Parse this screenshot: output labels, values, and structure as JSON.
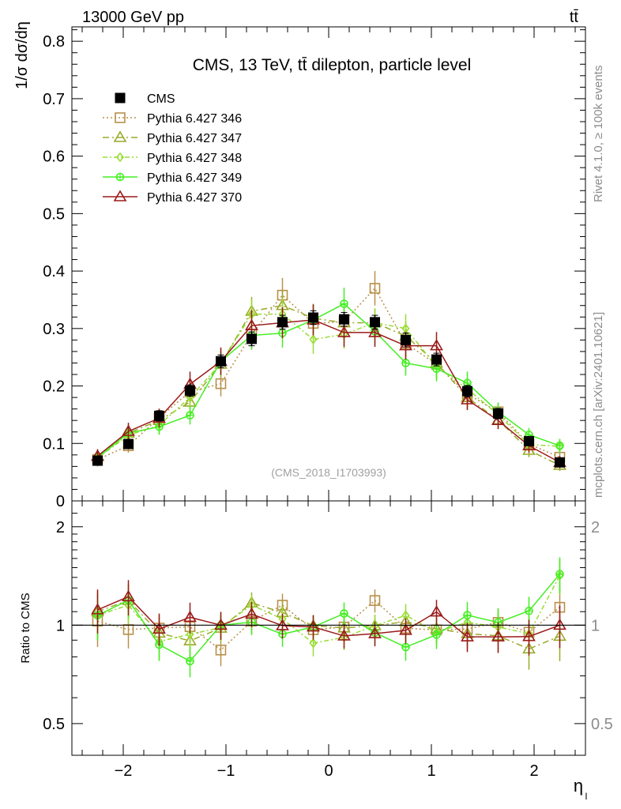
{
  "header": {
    "energy_label": "13000 GeV pp",
    "process_label": "tt̄",
    "side_label_top": "Rivet 4.1.0, ≥ 100k events",
    "side_label_bottom": "mcplots.cern.ch [arXiv:2401.10621]"
  },
  "chart_data": {
    "type": "line",
    "title": "CMS, 13 TeV, tt̄ dilepton, particle level",
    "analysis_id": "(CMS_2018_I1703993)",
    "xlabel": "η",
    "xlabel_sub": "l",
    "ylabel": "1/σ dσ/dη",
    "ratio_ylabel": "Ratio to CMS",
    "xlim": [
      -2.5,
      2.5
    ],
    "ylim": [
      0,
      0.825
    ],
    "ratio_ylim": [
      0.4,
      2.4
    ],
    "x_ticks": [
      -2,
      -1,
      0,
      1,
      2
    ],
    "x_tick_labels": [
      "−2",
      "−1",
      "0",
      "1",
      "2"
    ],
    "y_ticks": [
      0,
      0.1,
      0.2,
      0.3,
      0.4,
      0.5,
      0.6,
      0.7,
      0.8
    ],
    "y_tick_labels": [
      "0",
      "0.1",
      "0.2",
      "0.3",
      "0.4",
      "0.5",
      "0.6",
      "0.7",
      "0.8"
    ],
    "ratio_ticks": [
      0.5,
      1,
      2
    ],
    "ratio_tick_labels": [
      "0.5",
      "1",
      "2"
    ],
    "x": [
      -2.25,
      -1.95,
      -1.65,
      -1.35,
      -1.05,
      -0.75,
      -0.45,
      -0.15,
      0.15,
      0.45,
      0.75,
      1.05,
      1.35,
      1.65,
      1.95,
      2.25
    ],
    "data": {
      "name": "CMS",
      "values": [
        0.07,
        0.099,
        0.148,
        0.192,
        0.243,
        0.282,
        0.311,
        0.319,
        0.316,
        0.311,
        0.28,
        0.246,
        0.191,
        0.152,
        0.104,
        0.067
      ],
      "errors": [
        0.006,
        0.007,
        0.009,
        0.01,
        0.011,
        0.012,
        0.012,
        0.012,
        0.012,
        0.012,
        0.012,
        0.011,
        0.01,
        0.009,
        0.007,
        0.006
      ],
      "color": "#000000"
    },
    "series": [
      {
        "name": "Pythia 6.427 346",
        "color": "#b8904a",
        "marker": "square",
        "dash": "2,3",
        "values": [
          0.072,
          0.096,
          0.145,
          0.19,
          0.204,
          0.29,
          0.358,
          0.309,
          0.312,
          0.37,
          0.274,
          0.238,
          0.186,
          0.155,
          0.099,
          0.076
        ],
        "errors": [
          0.012,
          0.012,
          0.016,
          0.02,
          0.022,
          0.025,
          0.03,
          0.025,
          0.025,
          0.03,
          0.025,
          0.022,
          0.02,
          0.016,
          0.012,
          0.012
        ]
      },
      {
        "name": "Pythia 6.427 347",
        "color": "#9aaa2a",
        "marker": "triangle",
        "dash": "8,4,2,4",
        "values": [
          0.077,
          0.118,
          0.14,
          0.172,
          0.238,
          0.33,
          0.34,
          0.318,
          0.31,
          0.31,
          0.287,
          0.24,
          0.18,
          0.141,
          0.088,
          0.062
        ],
        "errors": [
          0.012,
          0.014,
          0.016,
          0.02,
          0.022,
          0.025,
          0.028,
          0.025,
          0.025,
          0.025,
          0.025,
          0.022,
          0.02,
          0.016,
          0.012,
          0.01
        ]
      },
      {
        "name": "Pythia 6.427 348",
        "color": "#99dd33",
        "marker": "diamond",
        "dash": "6,3,2,3",
        "values": [
          0.075,
          0.114,
          0.132,
          0.18,
          0.239,
          0.325,
          0.325,
          0.281,
          0.29,
          0.31,
          0.3,
          0.234,
          0.195,
          0.15,
          0.098,
          0.095
        ],
        "errors": [
          0.012,
          0.014,
          0.016,
          0.02,
          0.022,
          0.025,
          0.028,
          0.025,
          0.025,
          0.025,
          0.025,
          0.022,
          0.02,
          0.016,
          0.012,
          0.012
        ]
      },
      {
        "name": "Pythia 6.427 349",
        "color": "#44ee22",
        "marker": "circle",
        "dash": "",
        "values": [
          0.075,
          0.118,
          0.129,
          0.149,
          0.243,
          0.288,
          0.292,
          0.315,
          0.343,
          0.295,
          0.24,
          0.23,
          0.205,
          0.155,
          0.115,
          0.096
        ],
        "errors": [
          0.012,
          0.014,
          0.014,
          0.016,
          0.022,
          0.025,
          0.025,
          0.025,
          0.028,
          0.025,
          0.022,
          0.022,
          0.02,
          0.016,
          0.012,
          0.012
        ]
      },
      {
        "name": "Pythia 6.427 370",
        "color": "#9b1a1a",
        "marker": "triangle",
        "dash": "",
        "values": [
          0.078,
          0.121,
          0.144,
          0.203,
          0.243,
          0.305,
          0.31,
          0.315,
          0.293,
          0.293,
          0.27,
          0.27,
          0.176,
          0.14,
          0.096,
          0.067
        ],
        "errors": [
          0.012,
          0.015,
          0.016,
          0.022,
          0.024,
          0.027,
          0.027,
          0.027,
          0.025,
          0.025,
          0.024,
          0.024,
          0.018,
          0.015,
          0.012,
          0.01
        ]
      }
    ]
  }
}
